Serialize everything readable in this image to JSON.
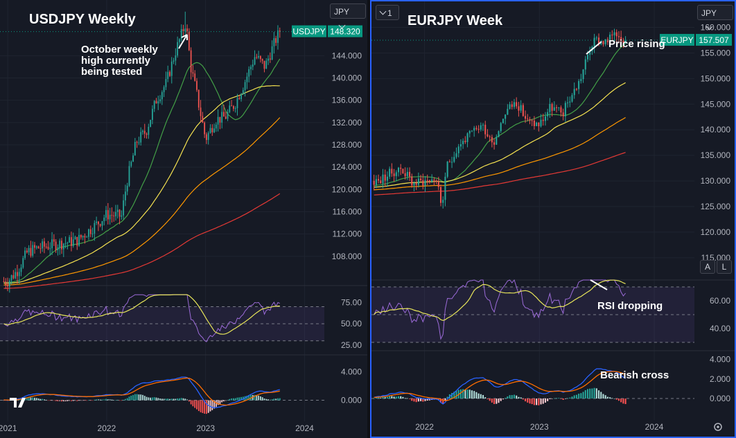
{
  "left_chart": {
    "title": "USDJPY Weekly",
    "currency_dropdown": "JPY",
    "price_label": "USDJPY",
    "last_price": "148.320",
    "annotation": [
      "October weekly",
      "high currently",
      "being tested"
    ],
    "price_ticks": [
      "144.000",
      "140.000",
      "136.000",
      "132.000",
      "128.000",
      "124.000",
      "120.000",
      "116.000",
      "112.000",
      "108.000"
    ],
    "rsi_ticks": [
      "75.00",
      "50.00",
      "25.00"
    ],
    "macd_ticks": [
      "4.000",
      "0.000"
    ],
    "time_ticks": [
      "2021",
      "2022",
      "2023",
      "2024"
    ]
  },
  "right_chart": {
    "title": "EURJPY Week",
    "currency_dropdown": "JPY",
    "collapse_button": "1",
    "price_label": "EURJPY",
    "last_price": "157.507",
    "annotation_price": "Price rising",
    "annotation_rsi": "RSI dropping",
    "annotation_macd": "Bearish cross",
    "price_ticks": [
      "160.000",
      "155.000",
      "150.000",
      "145.000",
      "140.000",
      "135.000",
      "130.000",
      "125.000",
      "120.000",
      "115.000"
    ],
    "rsi_ticks": [
      "60.00",
      "40.00"
    ],
    "macd_ticks": [
      "4.000",
      "2.000",
      "0.000"
    ],
    "time_ticks": [
      "2022",
      "2023",
      "2024"
    ],
    "auto_button": "A",
    "log_button": "L"
  },
  "colors": {
    "up": "#26a69a",
    "down": "#ef5350",
    "sma_fast": "#43a047",
    "sma_mid": "#f6e351",
    "sma_slow": "#ff9800",
    "sma_long": "#e53935",
    "rsi": "#9c6bd9",
    "rsi_ma": "#e8e65a",
    "macd": "#2962ff",
    "signal": "#ff6d00",
    "accent": "#2962ff",
    "price_tag": "#089981"
  },
  "chart_data": [
    {
      "type": "candlestick",
      "symbol": "USDJPY",
      "timeframe": "weekly",
      "price_range": [
        104,
        152
      ],
      "time_range": [
        "2021-01",
        "2024-03"
      ],
      "last": 148.32,
      "close_path": [
        [
          2021.0,
          103.5
        ],
        [
          2021.1,
          105.5
        ],
        [
          2021.2,
          108.8
        ],
        [
          2021.3,
          109.5
        ],
        [
          2021.5,
          110.2
        ],
        [
          2021.7,
          110.8
        ],
        [
          2021.9,
          113.8
        ],
        [
          2022.0,
          115.5
        ],
        [
          2022.15,
          115.2
        ],
        [
          2022.2,
          121.0
        ],
        [
          2022.3,
          128.5
        ],
        [
          2022.4,
          130.5
        ],
        [
          2022.5,
          136.0
        ],
        [
          2022.6,
          139.0
        ],
        [
          2022.7,
          145.0
        ],
        [
          2022.8,
          150.0
        ],
        [
          2022.85,
          142.0
        ],
        [
          2022.9,
          138.0
        ],
        [
          2023.0,
          129.0
        ],
        [
          2023.1,
          132.5
        ],
        [
          2023.2,
          133.0
        ],
        [
          2023.3,
          135.5
        ],
        [
          2023.4,
          139.5
        ],
        [
          2023.5,
          144.0
        ],
        [
          2023.6,
          142.0
        ],
        [
          2023.7,
          146.5
        ],
        [
          2023.75,
          148.32
        ]
      ],
      "october_high": 151.9,
      "rsi_range": [
        20,
        85
      ],
      "macd_range": [
        -1.8,
        6.0
      ]
    },
    {
      "type": "candlestick",
      "symbol": "EURJPY",
      "timeframe": "weekly",
      "price_range": [
        112,
        164
      ],
      "time_range": [
        "2021-07",
        "2024-06"
      ],
      "last": 157.507,
      "close_path": [
        [
          2021.6,
          130.0
        ],
        [
          2021.7,
          131.5
        ],
        [
          2021.8,
          132.5
        ],
        [
          2021.9,
          129.5
        ],
        [
          2022.0,
          130.0
        ],
        [
          2022.1,
          130.5
        ],
        [
          2022.15,
          125.0
        ],
        [
          2022.2,
          133.0
        ],
        [
          2022.3,
          137.0
        ],
        [
          2022.4,
          139.0
        ],
        [
          2022.5,
          141.0
        ],
        [
          2022.6,
          137.5
        ],
        [
          2022.7,
          143.5
        ],
        [
          2022.8,
          145.5
        ],
        [
          2022.9,
          141.5
        ],
        [
          2023.0,
          141.0
        ],
        [
          2023.1,
          144.5
        ],
        [
          2023.2,
          143.0
        ],
        [
          2023.25,
          145.5
        ],
        [
          2023.35,
          149.5
        ],
        [
          2023.45,
          156.5
        ],
        [
          2023.5,
          157.5
        ],
        [
          2023.6,
          157.0
        ],
        [
          2023.65,
          159.5
        ],
        [
          2023.75,
          157.507
        ]
      ],
      "rsi_range": [
        28,
        76
      ],
      "macd_range": [
        -1.2,
        4.6
      ]
    }
  ]
}
